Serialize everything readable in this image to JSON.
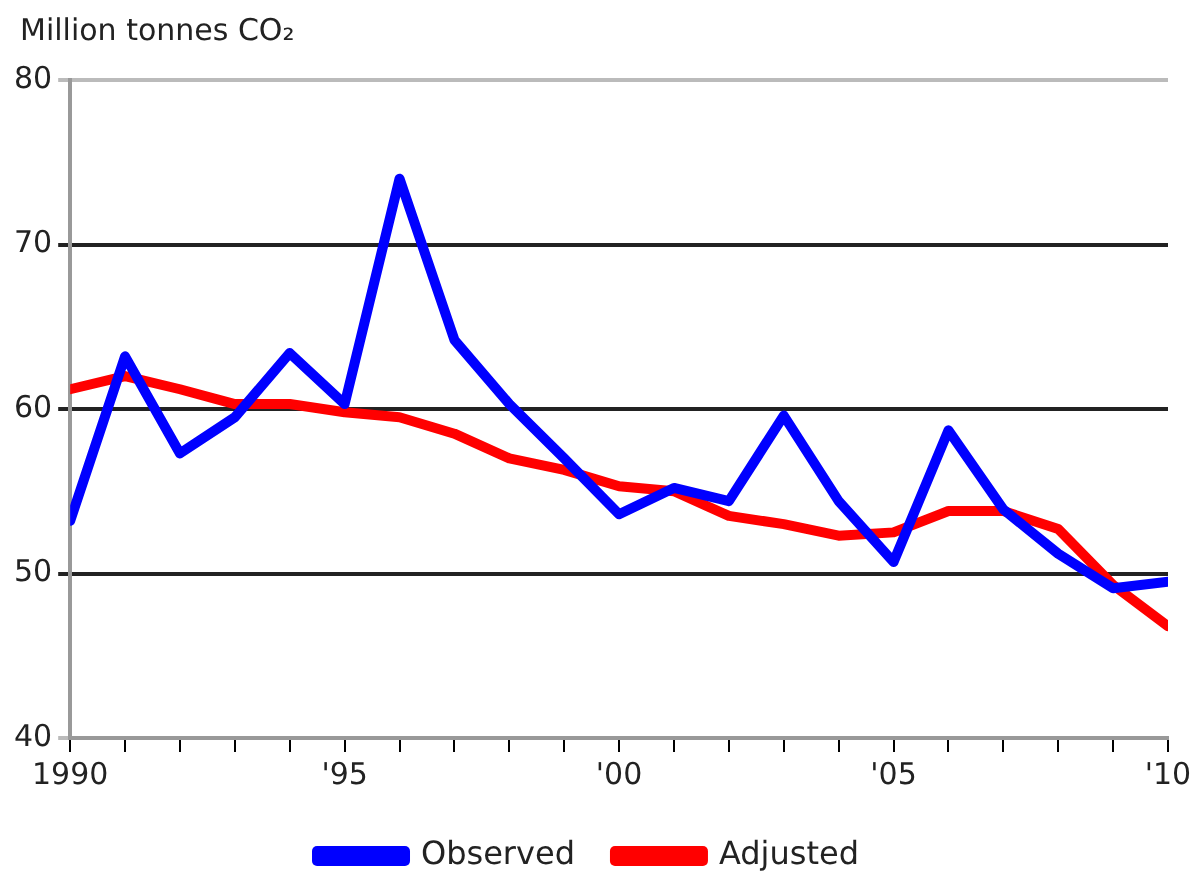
{
  "chart_data": {
    "type": "line",
    "ylabel": "Million tonnes CO₂",
    "x": [
      1990,
      1991,
      1992,
      1993,
      1994,
      1995,
      1996,
      1997,
      1998,
      1999,
      2000,
      2001,
      2002,
      2003,
      2004,
      2005,
      2006,
      2007,
      2008,
      2009,
      2010
    ],
    "series": [
      {
        "name": "Observed",
        "color": "#0000ff",
        "values": [
          53.2,
          63.2,
          57.3,
          59.5,
          63.4,
          60.3,
          74,
          64.2,
          60.3,
          57,
          53.6,
          55.2,
          54.4,
          59.6,
          54.4,
          50.7,
          58.7,
          53.9,
          51.2,
          49.1,
          49.5
        ]
      },
      {
        "name": "Adjusted",
        "color": "#ff0000",
        "values": [
          61.2,
          62,
          61.2,
          60.3,
          60.3,
          59.8,
          59.5,
          58.5,
          57,
          56.3,
          55.3,
          55,
          53.5,
          53,
          52.3,
          52.5,
          53.8,
          53.8,
          52.7,
          49.3,
          46.8
        ]
      }
    ],
    "xlim": [
      1990,
      2010
    ],
    "xticks": [
      {
        "value": 1990,
        "label": "1990"
      },
      {
        "value": 1991,
        "label": null
      },
      {
        "value": 1992,
        "label": null
      },
      {
        "value": 1993,
        "label": null
      },
      {
        "value": 1994,
        "label": null
      },
      {
        "value": 1995,
        "label": "'95"
      },
      {
        "value": 1996,
        "label": null
      },
      {
        "value": 1997,
        "label": null
      },
      {
        "value": 1998,
        "label": null
      },
      {
        "value": 1999,
        "label": null
      },
      {
        "value": 2000,
        "label": "'00"
      },
      {
        "value": 2001,
        "label": null
      },
      {
        "value": 2002,
        "label": null
      },
      {
        "value": 2003,
        "label": null
      },
      {
        "value": 2004,
        "label": null
      },
      {
        "value": 2005,
        "label": "'05"
      },
      {
        "value": 2006,
        "label": null
      },
      {
        "value": 2007,
        "label": null
      },
      {
        "value": 2008,
        "label": null
      },
      {
        "value": 2009,
        "label": null
      },
      {
        "value": 2010,
        "label": "'10"
      }
    ],
    "ylim": [
      40,
      80
    ],
    "yticks": [
      40,
      50,
      60,
      70,
      80
    ],
    "grid": "y",
    "legend": "bottom",
    "marker": "none",
    "line_style": "solid"
  }
}
